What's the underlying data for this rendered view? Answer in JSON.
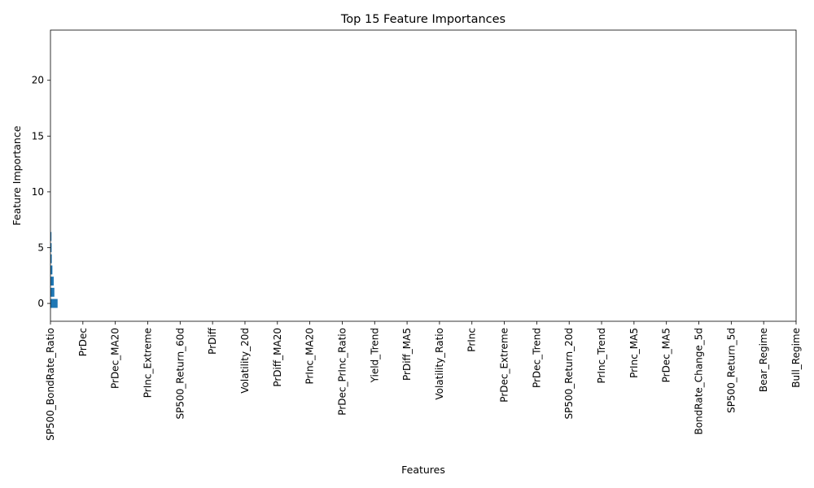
{
  "chart_data": {
    "type": "bar",
    "orientation": "horizontal-bars-on-vertical-axis",
    "title": "Top 15 Feature Importances",
    "xlabel": "Features",
    "ylabel": "Feature Importance",
    "x_tick_labels": [
      "SP500_BondRate_Ratio",
      "PrDec",
      "PrDec_MA20",
      "PrInc_Extreme",
      "SP500_Return_60d",
      "PrDiff",
      "Volatility_20d",
      "PrDiff_MA20",
      "PrInc_MA20",
      "PrDec_PrInc_Ratio",
      "Yield_Trend",
      "PrDiff_MA5",
      "Volatility_Ratio",
      "PrInc",
      "PrDec_Extreme",
      "PrDec_Trend",
      "SP500_Return_20d",
      "PrInc_Trend",
      "PrInc_MA5",
      "PrDec_MA5",
      "BondRate_Change_5d",
      "SP500_Return_5d",
      "Bear_Regime",
      "Bull_Regime"
    ],
    "x_range": [
      0,
      23
    ],
    "bars": [
      {
        "y": 0,
        "width": 0.22
      },
      {
        "y": 1,
        "width": 0.12
      },
      {
        "y": 2,
        "width": 0.1
      },
      {
        "y": 3,
        "width": 0.06
      },
      {
        "y": 4,
        "width": 0.04
      },
      {
        "y": 5,
        "width": 0.035
      },
      {
        "y": 6,
        "width": 0.03
      }
    ],
    "y_ticks": [
      0,
      5,
      10,
      15,
      20
    ],
    "ylim": [
      -1.6,
      24.5
    ],
    "bar_height": 0.8,
    "bar_color": "#1f77b4",
    "grid": false,
    "legend": "none"
  }
}
